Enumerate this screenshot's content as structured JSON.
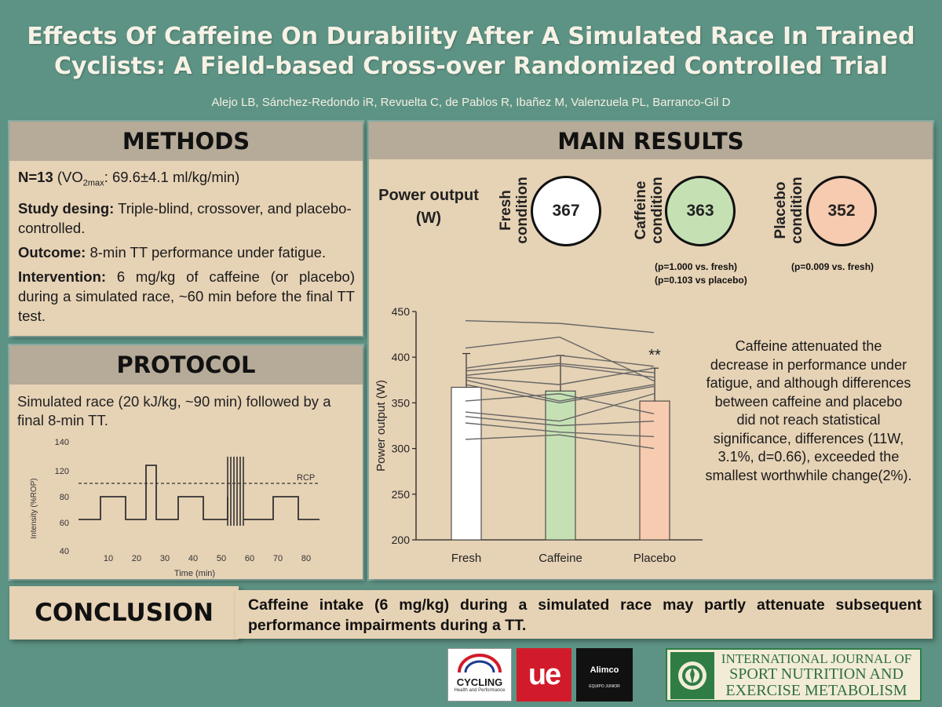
{
  "header": {
    "title_line1": "Effects Of Caffeine On Durability After A Simulated Race In Trained",
    "title_line2": "Cyclists: A Field-based Cross-over Randomized Controlled Trial",
    "authors": "Alejo LB, Sánchez-Redondo iR, Revuelta C, de Pablos R, Ibañez M, Valenzuela PL, Barranco-Gil D"
  },
  "methods": {
    "heading": "METHODS",
    "n_label": "N=13",
    "n_text_pre": " (VO",
    "n_sub": "2max",
    "n_text_post": ": 69.6±4.1 ml/kg/min)",
    "design_label": "Study desing:",
    "design_text": " Triple-blind, crossover, and placebo-controlled.",
    "outcome_label": "Outcome:",
    "outcome_text": " 8-min TT performance under fatigue.",
    "intervention_label": "Intervention:",
    "intervention_text": " 6 mg/kg of caffeine (or placebo) during a simulated race, ~60 min before the final TT test."
  },
  "protocol": {
    "heading": "PROTOCOL",
    "text": "Simulated race (20 kJ/kg, ~90 min) followed by a final 8-min TT.",
    "chart": {
      "ylabel": "Intensity (%ROP)",
      "xlabel": "Time (min)",
      "yticks": [
        "140",
        "120",
        "80",
        "60",
        "40"
      ],
      "xticks": [
        "10",
        "20",
        "30",
        "40",
        "50",
        "60",
        "70",
        "80"
      ],
      "rcp_label": "RCP"
    }
  },
  "results": {
    "heading": "MAIN RESULTS",
    "power_label": "Power output (W)",
    "conditions": [
      {
        "label": "Fresh condition",
        "value": "367",
        "color": "#ffffff"
      },
      {
        "label": "Caffeine condition",
        "value": "363",
        "color": "#c5e1b4"
      },
      {
        "label": "Placebo condition",
        "value": "352",
        "color": "#f6cbb0"
      }
    ],
    "pvals_caffeine": [
      "(p=1.000 vs. fresh)",
      "(p=0.103 vs placebo)"
    ],
    "pvals_placebo": [
      "(p=0.009 vs. fresh)"
    ],
    "summary": "Caffeine attenuated the decrease in performance under fatigue, and although differences between caffeine and placebo did not reach statistical significance, differences (11W, 3.1%, d=0.66), exceeded the smallest worthwhile change(2%)."
  },
  "chart_data": {
    "type": "bar",
    "categories": [
      "Fresh",
      "Caffeine",
      "Placebo"
    ],
    "values": [
      367,
      363,
      352
    ],
    "errors": [
      37,
      39,
      36
    ],
    "bar_colors": [
      "#ffffff",
      "#c5e1b4",
      "#f6cbb0"
    ],
    "ylabel": "Power output (W)",
    "ylim": [
      200,
      450
    ],
    "yticks": [
      "450",
      "400",
      "350",
      "300",
      "250",
      "200"
    ],
    "annotation": "**",
    "individual_lines": [
      [
        440,
        437,
        427
      ],
      [
        410,
        422,
        374
      ],
      [
        388,
        402,
        390
      ],
      [
        385,
        393,
        383
      ],
      [
        380,
        391,
        378
      ],
      [
        378,
        370,
        388
      ],
      [
        375,
        352,
        370
      ],
      [
        370,
        350,
        368
      ],
      [
        352,
        360,
        338
      ],
      [
        340,
        330,
        360
      ],
      [
        335,
        325,
        330
      ],
      [
        328,
        318,
        313
      ],
      [
        310,
        315,
        300
      ]
    ]
  },
  "conclusion": {
    "heading": "CONCLUSION",
    "text": "Caffeine intake (6 mg/kg) during a simulated race may partly attenuate subsequent performance impairments during a TT."
  },
  "logos": {
    "cycling_line1": "CYCLING",
    "cycling_line2": "Health and Performance",
    "ue": "ue",
    "alimco": "Alimco",
    "alimco_sub": "EQUIPO JUNIOR",
    "journal_line1": "INTERNATIONAL JOURNAL OF",
    "journal_line2": "SPORT NUTRITION AND",
    "journal_line3": "EXERCISE METABOLISM"
  }
}
